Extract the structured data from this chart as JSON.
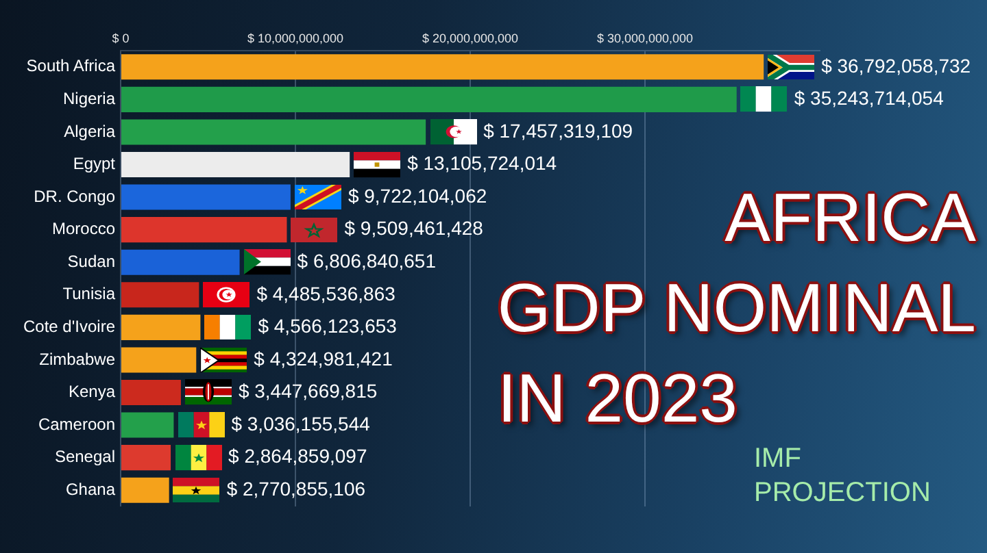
{
  "chart_data": {
    "type": "bar",
    "orientation": "horizontal",
    "title": "AFRICA\nGDP NOMINAL\nIN 2023",
    "subtitle": "IMF PROJECTION",
    "categories": [
      "South Africa",
      "Nigeria",
      "Algeria",
      "Egypt",
      "DR. Congo",
      "Morocco",
      "Sudan",
      "Tunisia",
      "Cote d'Ivoire",
      "Zimbabwe",
      "Kenya",
      "Cameroon",
      "Senegal",
      "Ghana"
    ],
    "values": [
      36792058732,
      35243714054,
      17457319109,
      13105724014,
      9722104062,
      9509461428,
      6806840651,
      4485536863,
      4566123653,
      4324981421,
      3447669815,
      3036155544,
      2864859097,
      2770855106
    ],
    "colors": [
      "#f5a21b",
      "#1f9b4a",
      "#23a04b",
      "#ececec",
      "#1b66dc",
      "#dd352c",
      "#1a62d8",
      "#c8261c",
      "#f5a21b",
      "#f5a21b",
      "#cc2a1e",
      "#23a04b",
      "#dd3a2e",
      "#f5a21b"
    ],
    "value_labels": [
      "$ 36,792,058,732",
      "$ 35,243,714,054",
      "$ 17,457,319,109",
      "$ 13,105,724,014",
      "$ 9,722,104,062",
      "$ 9,509,461,428",
      "$ 6,806,840,651",
      "$ 4,485,536,863",
      "$ 4,566,123,653",
      "$ 4,324,981,421",
      "$ 3,447,669,815",
      "$ 3,036,155,544",
      "$ 2,864,859,097",
      "$ 2,770,855,106"
    ],
    "xlim": [
      0,
      40000000000
    ],
    "xticks": [
      {
        "value": 0,
        "label": "$ 0"
      },
      {
        "value": 10000000000,
        "label": "$ 10,000,000,000"
      },
      {
        "value": 20000000000,
        "label": "$ 20,000,000,000"
      },
      {
        "value": 30000000000,
        "label": "$ 30,000,000,000"
      }
    ],
    "grid": "x"
  }
}
